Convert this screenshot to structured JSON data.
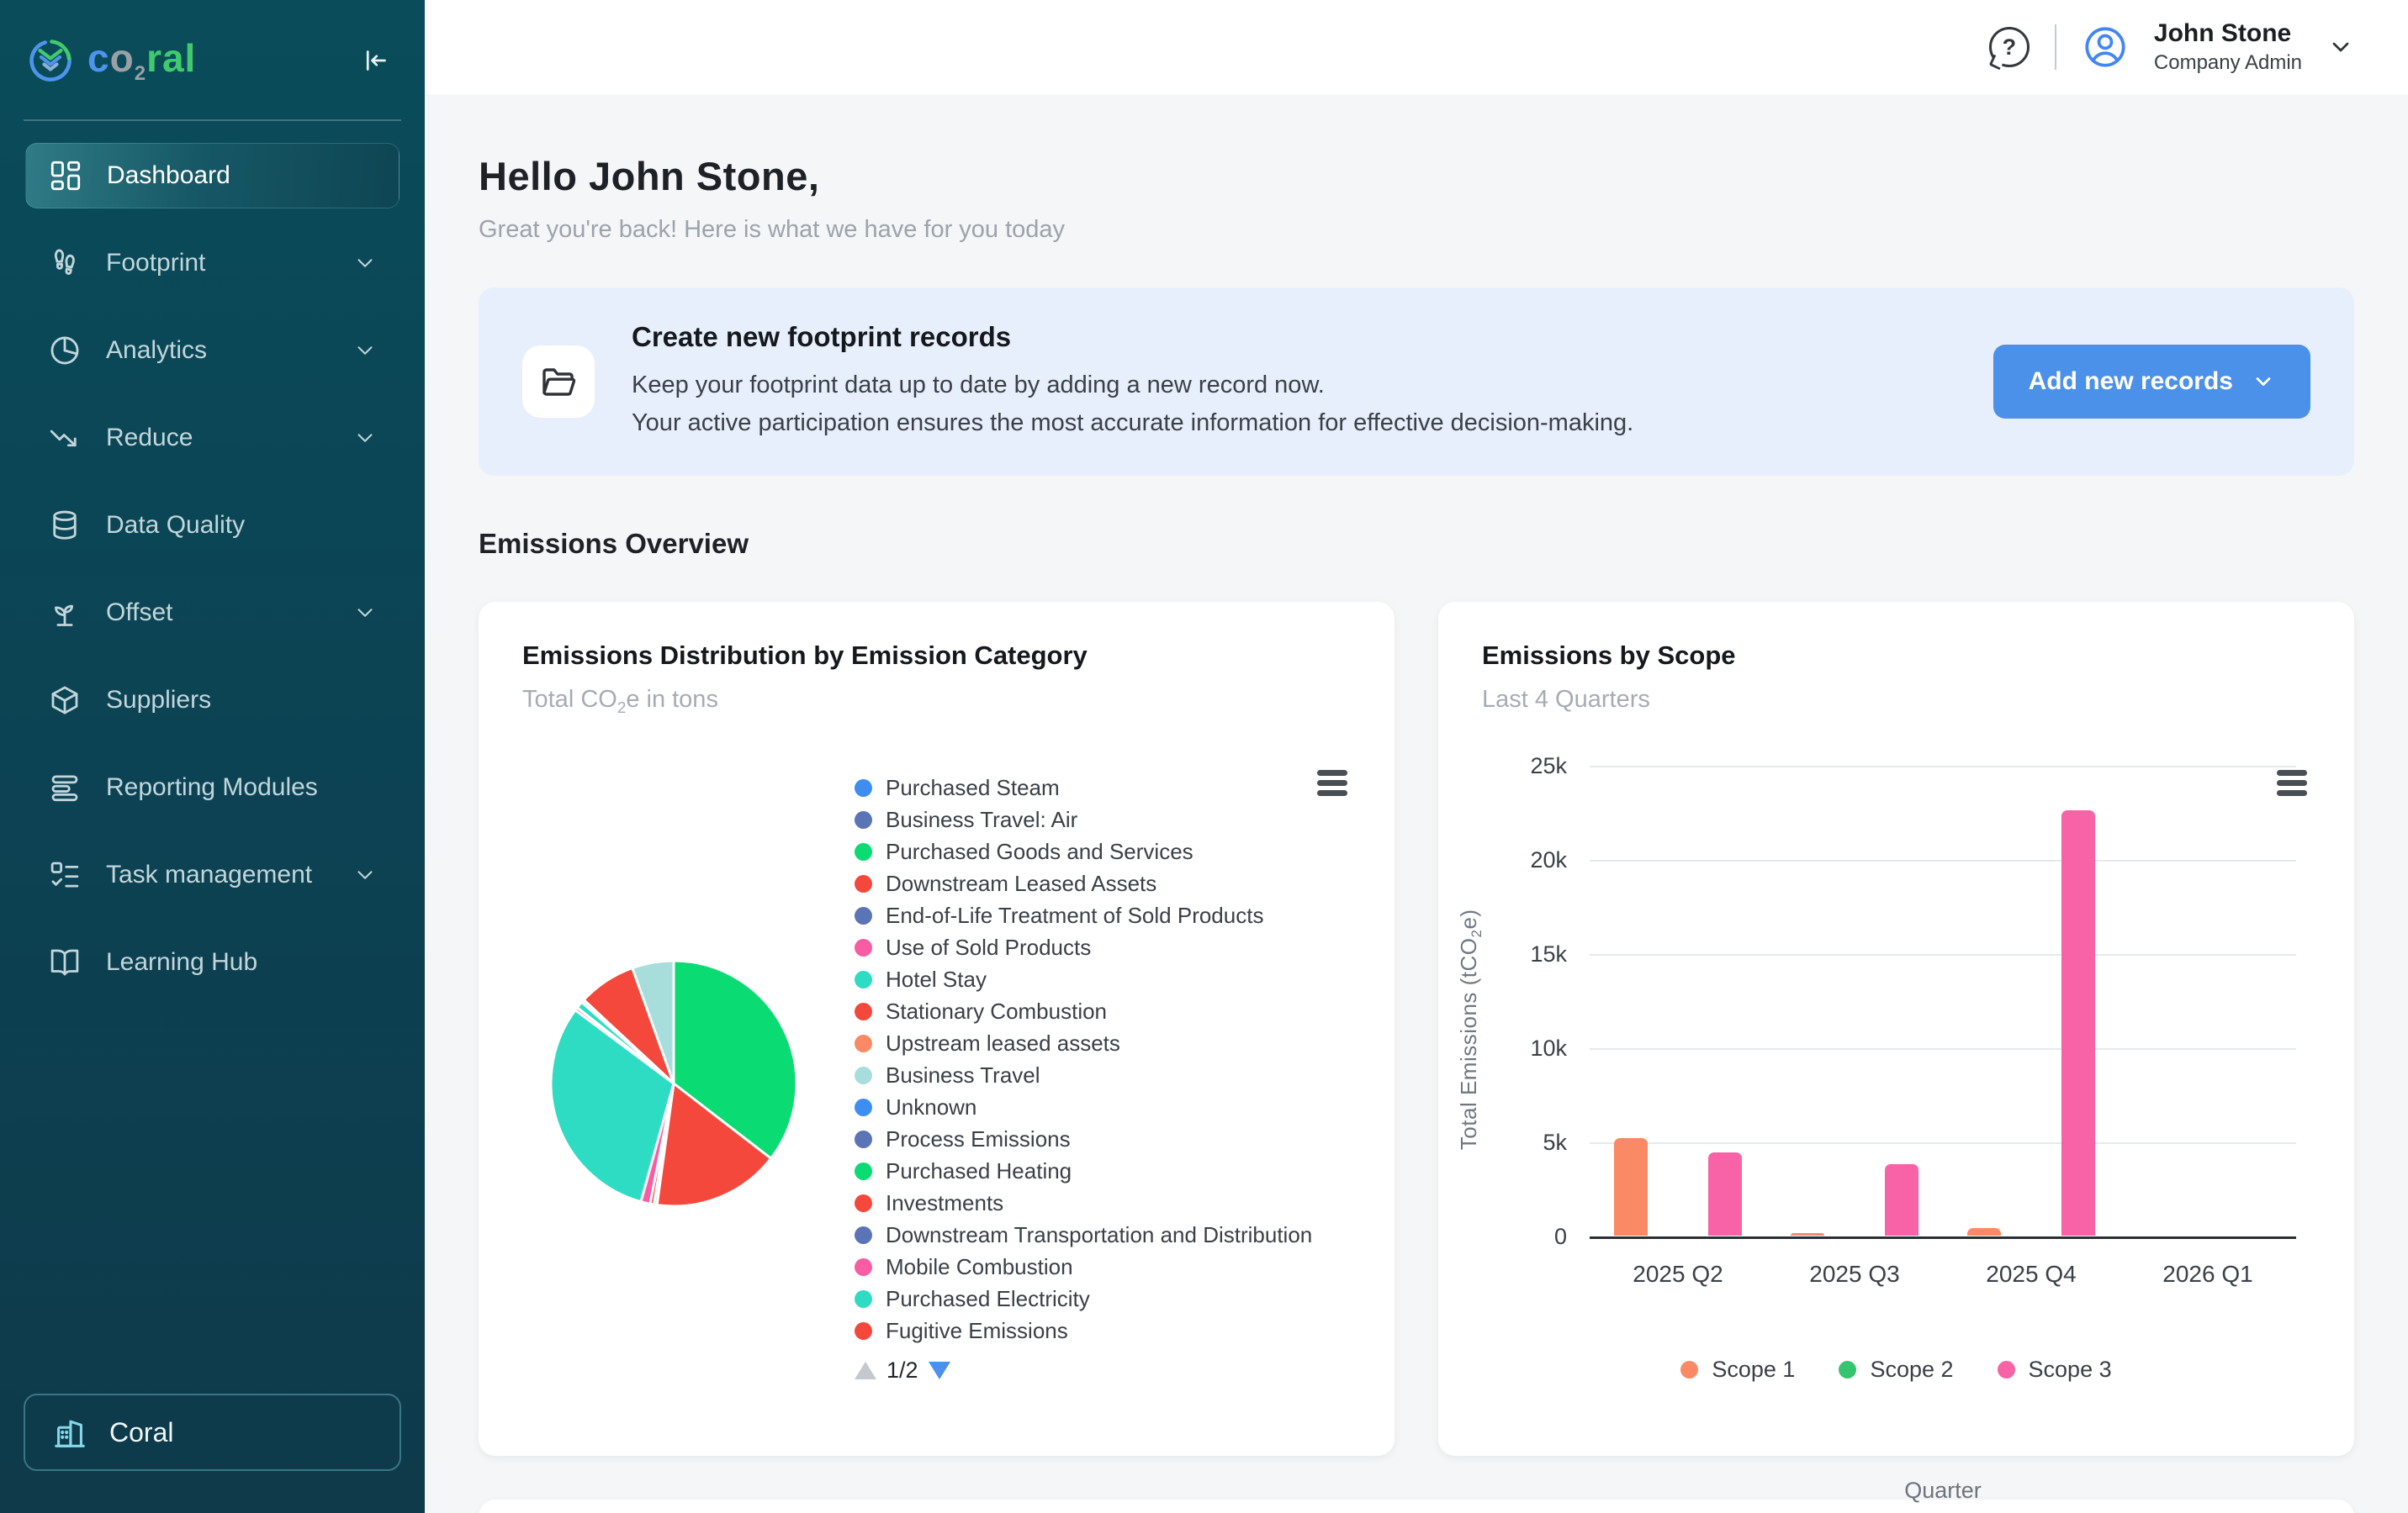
{
  "app": {
    "logo_c": "c",
    "logo_o": "o",
    "logo_sub": "2",
    "logo_ral": "ral"
  },
  "sidebar": {
    "items": [
      {
        "label": "Dashboard",
        "icon": "dashboard",
        "active": true,
        "chevron": false
      },
      {
        "label": "Footprint",
        "icon": "footprint",
        "active": false,
        "chevron": true
      },
      {
        "label": "Analytics",
        "icon": "analytics",
        "active": false,
        "chevron": true
      },
      {
        "label": "Reduce",
        "icon": "reduce",
        "active": false,
        "chevron": true
      },
      {
        "label": "Data Quality",
        "icon": "database",
        "active": false,
        "chevron": false
      },
      {
        "label": "Offset",
        "icon": "plant",
        "active": false,
        "chevron": true
      },
      {
        "label": "Suppliers",
        "icon": "box",
        "active": false,
        "chevron": false
      },
      {
        "label": "Reporting Modules",
        "icon": "report",
        "active": false,
        "chevron": false
      },
      {
        "label": "Task management",
        "icon": "tasks",
        "active": false,
        "chevron": true
      },
      {
        "label": "Learning Hub",
        "icon": "book",
        "active": false,
        "chevron": false
      }
    ],
    "org_label": "Coral"
  },
  "header": {
    "user_name": "John Stone",
    "user_role": "Company Admin"
  },
  "page": {
    "greeting": "Hello John Stone,",
    "greeting_subtitle": "Great you're back! Here is what we have for you today",
    "banner": {
      "title": "Create new footprint records",
      "line1": "Keep your footprint data up to date by adding a new record now.",
      "line2": "Your active participation ensures the most accurate information for effective decision-making.",
      "button_label": "Add new records"
    },
    "section_title": "Emissions Overview"
  },
  "chart_data": [
    {
      "type": "pie",
      "title": "Emissions Distribution by Emission Category",
      "subtitle_parts": {
        "pre": "Total CO",
        "sub": "2",
        "post": "e in tons"
      },
      "legend": [
        {
          "label": "Purchased Steam",
          "color": "#3D8EF0"
        },
        {
          "label": "Business Travel: Air",
          "color": "#5B74B5"
        },
        {
          "label": "Purchased Goods and Services",
          "color": "#0ADB72"
        },
        {
          "label": "Downstream Leased Assets",
          "color": "#F4483C"
        },
        {
          "label": "End-of-Life Treatment of Sold Products",
          "color": "#5B74B5"
        },
        {
          "label": "Use of Sold Products",
          "color": "#F85CA2"
        },
        {
          "label": "Hotel Stay",
          "color": "#2EDCC4"
        },
        {
          "label": "Stationary Combustion",
          "color": "#F4483C"
        },
        {
          "label": "Upstream leased assets",
          "color": "#FA8A66"
        },
        {
          "label": "Business Travel",
          "color": "#A7DEDC"
        },
        {
          "label": "Unknown",
          "color": "#3D8EF0"
        },
        {
          "label": "Process Emissions",
          "color": "#5B74B5"
        },
        {
          "label": "Purchased Heating",
          "color": "#0ADB72"
        },
        {
          "label": "Investments",
          "color": "#F4483C"
        },
        {
          "label": "Downstream Transportation and Distribution",
          "color": "#5B74B5"
        },
        {
          "label": "Mobile Combustion",
          "color": "#F85CA2"
        },
        {
          "label": "Purchased Electricity",
          "color": "#2EDCC4"
        },
        {
          "label": "Fugitive Emissions",
          "color": "#F4483C"
        }
      ],
      "slices": [
        {
          "label": "Purchased Goods and Services",
          "color": "#0ADB72",
          "percent": 35.0
        },
        {
          "label": "Stationary Combustion",
          "color": "#F4483C",
          "percent": 16.5
        },
        {
          "label": "Business Travel",
          "color": "#A7DEDC",
          "percent": 0.4
        },
        {
          "label": "Investments",
          "color": "#F4483C",
          "percent": 0.5
        },
        {
          "label": "Mobile Combustion",
          "color": "#F85CA2",
          "percent": 1.2
        },
        {
          "label": "Purchased Electricity",
          "color": "#2EDCC4",
          "percent": 30.5
        },
        {
          "label": "Use of Sold Products",
          "color": "#F85CA2",
          "percent": 0.4
        },
        {
          "label": "Hotel Stay",
          "color": "#2EDCC4",
          "percent": 0.9
        },
        {
          "label": "Business Travel: Air",
          "color": "#A7DEDC",
          "percent": 0.4
        },
        {
          "label": "Fugitive Emissions",
          "color": "#F4483C",
          "percent": 7.5
        },
        {
          "label": "Business Travel",
          "color": "#A7DEDC",
          "percent": 5.4
        }
      ],
      "pagination": "1/2"
    },
    {
      "type": "bar",
      "title": "Emissions by Scope",
      "subtitle": "Last 4 Quarters",
      "categories": [
        "2025 Q2",
        "2025 Q3",
        "2025 Q4",
        "2026 Q1"
      ],
      "series": [
        {
          "name": "Scope 1",
          "color": "#FA8A66",
          "values": [
            5200,
            150,
            400,
            0
          ]
        },
        {
          "name": "Scope 2",
          "color": "#37C46F",
          "values": [
            0,
            0,
            0,
            0
          ]
        },
        {
          "name": "Scope 3",
          "color": "#F863A8",
          "values": [
            4400,
            3800,
            22600,
            0
          ]
        }
      ],
      "ylabel_parts": {
        "pre": "Total Emissions (tCO",
        "sub": "2",
        "post": "e)"
      },
      "xlabel": "Quarter",
      "ylim": [
        0,
        25000
      ],
      "yticks": [
        {
          "v": 0,
          "label": "0"
        },
        {
          "v": 5000,
          "label": "5k"
        },
        {
          "v": 10000,
          "label": "10k"
        },
        {
          "v": 15000,
          "label": "15k"
        },
        {
          "v": 20000,
          "label": "20k"
        },
        {
          "v": 25000,
          "label": "25k"
        }
      ]
    }
  ]
}
